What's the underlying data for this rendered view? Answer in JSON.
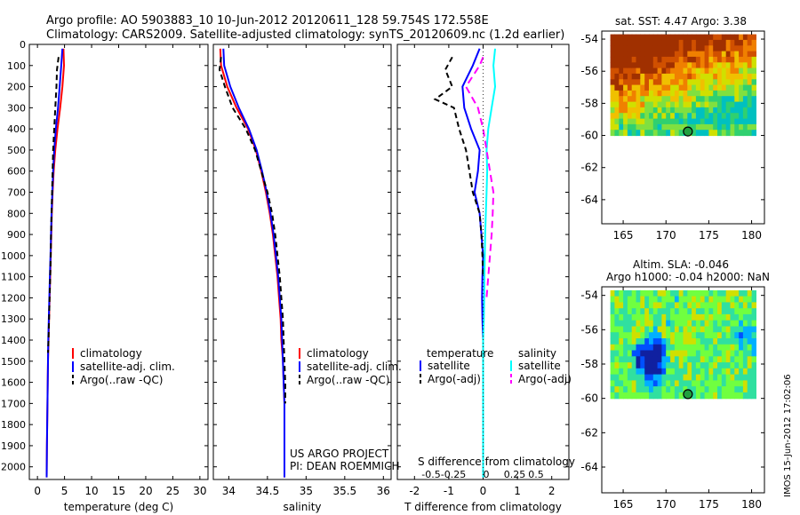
{
  "header": {
    "line1": "Argo profile: AO 5903883_10 10-Jun-2012 20120611_128 59.754S 172.558E",
    "line2": "Climatology: CARS2009. Satellite-adjusted climatology: synTS_20120609.nc (1.2d earlier)"
  },
  "side_stamp": "IMOS 15-Jun-2012 17:02:06",
  "colors": {
    "climatology": "#ff0000",
    "satellite": "#0000ff",
    "argo": "#000000",
    "salinity_satellite": "#00ffff",
    "salinity_argo": "#ff00ff"
  },
  "chart_data": [
    {
      "id": "temperature",
      "type": "line",
      "xlabel": "temperature (deg C)",
      "ylabel": "",
      "xlim": [
        -1.5,
        31.5
      ],
      "ylim": [
        2060,
        0
      ],
      "xticks": [
        0,
        5,
        10,
        15,
        20,
        25,
        30
      ],
      "yticks": [
        0,
        100,
        200,
        300,
        400,
        500,
        600,
        700,
        800,
        900,
        1000,
        1100,
        1200,
        1300,
        1400,
        1500,
        1600,
        1700,
        1800,
        1900,
        2000
      ],
      "legend": [
        "climatology",
        "satellite-adj. clim.",
        "Argo(..raw -QC)"
      ],
      "series": [
        {
          "name": "climatology",
          "color": "#ff0000",
          "dash": "",
          "x": [
            4.8,
            4.9,
            4.6,
            4.2,
            3.7,
            3.3,
            3.0,
            2.8,
            2.65,
            2.55,
            2.45,
            2.35,
            2.25,
            2.15,
            2.05,
            1.95,
            1.9,
            1.85,
            1.8,
            1.75,
            1.7
          ],
          "y": [
            20,
            100,
            200,
            300,
            400,
            500,
            600,
            700,
            800,
            900,
            1000,
            1100,
            1200,
            1300,
            1400,
            1500,
            1600,
            1700,
            1800,
            1900,
            2050
          ]
        },
        {
          "name": "satellite-adj. clim.",
          "color": "#0000ff",
          "dash": "",
          "x": [
            4.6,
            4.4,
            4.1,
            3.8,
            3.4,
            3.1,
            2.9,
            2.75,
            2.6,
            2.5,
            2.4,
            2.3,
            2.2,
            2.1,
            2.0,
            1.95,
            1.9,
            1.85,
            1.8,
            1.75,
            1.7
          ],
          "y": [
            20,
            100,
            200,
            300,
            400,
            500,
            600,
            700,
            800,
            900,
            1000,
            1100,
            1200,
            1300,
            1400,
            1500,
            1600,
            1700,
            1800,
            1900,
            2050
          ]
        },
        {
          "name": "Argo(..raw -QC)",
          "color": "#000000",
          "dash": "6,4",
          "x": [
            3.9,
            3.6,
            3.5,
            3.3,
            3.1,
            2.9,
            2.8,
            2.7,
            2.6,
            2.5,
            2.45,
            2.35,
            2.25,
            2.15,
            2.05,
            1.95
          ],
          "y": [
            60,
            120,
            200,
            300,
            400,
            500,
            600,
            700,
            800,
            900,
            1000,
            1100,
            1200,
            1300,
            1400,
            1460
          ]
        }
      ]
    },
    {
      "id": "salinity",
      "type": "line",
      "xlabel": "salinity",
      "ylabel": "",
      "xlim": [
        33.8,
        36.1
      ],
      "ylim": [
        2060,
        0
      ],
      "xticks": [
        34,
        34.5,
        35,
        35.5,
        36
      ],
      "legend": [
        "climatology",
        "satellite-adj. clim.",
        "Argo(..raw -QC)"
      ],
      "annotations": [
        "US ARGO PROJECT",
        "PI: DEAN ROEMMICH"
      ],
      "series": [
        {
          "name": "climatology",
          "color": "#ff0000",
          "dash": "",
          "x": [
            33.89,
            33.9,
            33.98,
            34.1,
            34.25,
            34.35,
            34.42,
            34.48,
            34.53,
            34.57,
            34.6,
            34.63,
            34.65,
            34.67,
            34.68,
            34.7,
            34.71,
            34.72,
            34.72,
            34.72,
            34.72
          ],
          "y": [
            20,
            100,
            200,
            300,
            400,
            500,
            600,
            700,
            800,
            900,
            1000,
            1100,
            1200,
            1300,
            1400,
            1500,
            1600,
            1700,
            1800,
            1900,
            2050
          ]
        },
        {
          "name": "satellite-adj. clim.",
          "color": "#0000ff",
          "dash": "",
          "x": [
            33.93,
            33.94,
            34.02,
            34.13,
            34.26,
            34.36,
            34.43,
            34.49,
            34.54,
            34.58,
            34.61,
            34.64,
            34.66,
            34.68,
            34.69,
            34.7,
            34.71,
            34.72,
            34.72,
            34.72,
            34.72
          ],
          "y": [
            20,
            100,
            200,
            300,
            400,
            500,
            600,
            700,
            800,
            900,
            1000,
            1100,
            1200,
            1300,
            1400,
            1500,
            1600,
            1700,
            1800,
            1900,
            2050
          ]
        },
        {
          "name": "Argo(..raw -QC)",
          "color": "#000000",
          "dash": "6,4",
          "x": [
            33.9,
            33.88,
            33.95,
            34.05,
            34.22,
            34.34,
            34.42,
            34.5,
            34.56,
            34.6,
            34.63,
            34.66,
            34.68,
            34.7,
            34.71,
            34.72,
            34.73,
            34.73
          ],
          "y": [
            60,
            120,
            200,
            300,
            400,
            500,
            600,
            700,
            800,
            900,
            1000,
            1100,
            1200,
            1300,
            1400,
            1500,
            1600,
            1700
          ]
        }
      ]
    },
    {
      "id": "difference",
      "type": "line",
      "xlabel": "T difference from climatology",
      "x2label": "S difference from climatology",
      "xlim": [
        -2.5,
        2.5
      ],
      "ylim": [
        2060,
        0
      ],
      "xticks": [
        -2,
        -1,
        0,
        1,
        2
      ],
      "xticks_top": [
        "-0.5",
        "-0.25",
        "0",
        "0.25",
        "0.5"
      ],
      "legend_titles": [
        "temperature",
        "salinity"
      ],
      "legend": [
        "satellite",
        "Argo(-adj)",
        "satellite",
        "Argo(-adj)"
      ],
      "series": [
        {
          "name": "satellite",
          "group": "temperature",
          "color": "#0000ff",
          "dash": "",
          "x": [
            -0.1,
            -0.3,
            -0.6,
            -0.55,
            -0.35,
            -0.1,
            -0.15,
            -0.25,
            -0.1,
            -0.05,
            0.0,
            -0.02,
            -0.03,
            -0.02,
            0.0,
            0.0,
            0.0,
            0.0,
            0.0,
            0.0,
            0.0
          ],
          "y": [
            20,
            100,
            200,
            300,
            400,
            500,
            600,
            700,
            800,
            900,
            1000,
            1100,
            1200,
            1300,
            1400,
            1500,
            1600,
            1700,
            1800,
            1900,
            2050
          ]
        },
        {
          "name": "Argo(-adj)",
          "group": "temperature",
          "color": "#000000",
          "dash": "6,4",
          "x": [
            -0.9,
            -1.1,
            -0.9,
            -1.4,
            -0.85,
            -0.7,
            -0.5,
            -0.4,
            -0.3,
            -0.1,
            -0.05,
            -0.02,
            0.0
          ],
          "y": [
            60,
            120,
            200,
            260,
            300,
            400,
            500,
            600,
            700,
            800,
            900,
            1000,
            1100
          ]
        },
        {
          "name": "satellite",
          "group": "salinity",
          "color": "#00ffff",
          "dash": "",
          "x": [
            0.35,
            0.3,
            0.35,
            0.25,
            0.15,
            0.1,
            0.12,
            0.1,
            0.08,
            0.06,
            0.05,
            0.04,
            0.03,
            0.02,
            0.0,
            0.0,
            0.0,
            0.0,
            0.0,
            0.0,
            0.0
          ],
          "y": [
            20,
            100,
            200,
            300,
            400,
            500,
            600,
            700,
            800,
            900,
            1000,
            1100,
            1200,
            1300,
            1400,
            1500,
            1600,
            1700,
            1800,
            1900,
            2050
          ]
        },
        {
          "name": "Argo(-adj)",
          "group": "salinity",
          "color": "#ff00ff",
          "dash": "8,5",
          "x": [
            0.0,
            -0.1,
            -0.3,
            -0.5,
            -0.15,
            0.0,
            0.1,
            0.2,
            0.3,
            0.28,
            0.25,
            0.2,
            0.15,
            0.1
          ],
          "y": [
            60,
            100,
            150,
            200,
            300,
            400,
            500,
            600,
            700,
            800,
            900,
            1000,
            1100,
            1200
          ]
        }
      ]
    },
    {
      "id": "sst-map",
      "type": "heatmap",
      "title": "sat. SST: 4.47 Argo: 3.38",
      "xlim": [
        162.5,
        181.5
      ],
      "ylim": [
        -65.5,
        -53.5
      ],
      "xticks": [
        165,
        170,
        175,
        180
      ],
      "yticks": [
        -54,
        -56,
        -58,
        -60,
        -62,
        -64
      ],
      "float_position": {
        "lon": 172.558,
        "lat": -59.754
      }
    },
    {
      "id": "sla-map",
      "type": "heatmap",
      "title": "Altim. SLA: -0.046",
      "subtitle": "Argo h1000: -0.04 h2000: NaN",
      "xlim": [
        162.5,
        181.5
      ],
      "ylim": [
        -65.5,
        -53.5
      ],
      "xticks": [
        165,
        170,
        175,
        180
      ],
      "yticks": [
        -54,
        -56,
        -58,
        -60,
        -62,
        -64
      ],
      "float_position": {
        "lon": 172.558,
        "lat": -59.754
      }
    }
  ]
}
